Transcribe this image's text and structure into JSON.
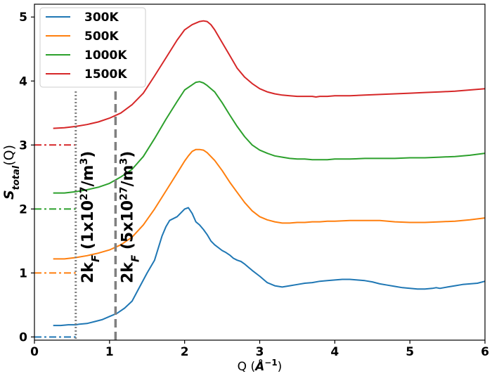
{
  "chart_data": {
    "type": "line",
    "xlabel_prefix": "Q (",
    "xlabel_unit": "Å",
    "xlabel_exp": "−1",
    "xlabel_suffix": ")",
    "ylabel_main": "S",
    "ylabel_sub": "total",
    "ylabel_arg": "(Q)",
    "xlim": [
      0,
      6
    ],
    "ylim": [
      -0.05,
      5.2
    ],
    "x_ticks": [
      "0",
      "1",
      "2",
      "3",
      "4",
      "5",
      "6"
    ],
    "y_ticks": [
      "0",
      "1",
      "2",
      "3",
      "4",
      "5"
    ],
    "grid": false,
    "legend_position": "top-left",
    "series": [
      {
        "name": "300K",
        "color": "#1f77b4",
        "baseline": 0,
        "x": [
          0.25,
          0.35,
          0.45,
          0.55,
          0.6,
          0.7,
          0.8,
          0.9,
          1.0,
          1.1,
          1.2,
          1.3,
          1.4,
          1.5,
          1.6,
          1.7,
          1.75,
          1.8,
          1.9,
          2.0,
          2.05,
          2.1,
          2.15,
          2.2,
          2.25,
          2.3,
          2.35,
          2.4,
          2.5,
          2.55,
          2.6,
          2.65,
          2.7,
          2.75,
          2.8,
          2.9,
          3.0,
          3.1,
          3.2,
          3.3,
          3.4,
          3.5,
          3.6,
          3.7,
          3.8,
          3.9,
          4.0,
          4.1,
          4.2,
          4.3,
          4.4,
          4.5,
          4.6,
          4.7,
          4.8,
          4.9,
          5.0,
          5.1,
          5.2,
          5.3,
          5.35,
          5.4,
          5.5,
          5.6,
          5.7,
          5.8,
          5.9,
          6.0
        ],
        "y": [
          0.18,
          0.18,
          0.19,
          0.19,
          0.2,
          0.21,
          0.24,
          0.27,
          0.32,
          0.37,
          0.45,
          0.56,
          0.78,
          1.0,
          1.2,
          1.58,
          1.72,
          1.82,
          1.88,
          2.0,
          2.02,
          1.93,
          1.8,
          1.75,
          1.68,
          1.6,
          1.5,
          1.44,
          1.35,
          1.32,
          1.28,
          1.23,
          1.2,
          1.18,
          1.14,
          1.04,
          0.95,
          0.85,
          0.8,
          0.78,
          0.8,
          0.82,
          0.84,
          0.85,
          0.87,
          0.88,
          0.89,
          0.9,
          0.9,
          0.89,
          0.88,
          0.86,
          0.83,
          0.81,
          0.79,
          0.77,
          0.76,
          0.75,
          0.75,
          0.76,
          0.77,
          0.76,
          0.78,
          0.8,
          0.82,
          0.83,
          0.84,
          0.87
        ]
      },
      {
        "name": "500K",
        "color": "#ff7f0e",
        "baseline": 1,
        "x": [
          0.25,
          0.4,
          0.55,
          0.7,
          0.85,
          1.0,
          1.15,
          1.3,
          1.45,
          1.6,
          1.75,
          1.9,
          2.0,
          2.05,
          2.1,
          2.15,
          2.2,
          2.25,
          2.3,
          2.4,
          2.5,
          2.6,
          2.7,
          2.8,
          2.9,
          3.0,
          3.1,
          3.2,
          3.3,
          3.4,
          3.5,
          3.6,
          3.7,
          3.8,
          3.9,
          4.0,
          4.2,
          4.4,
          4.6,
          4.8,
          5.0,
          5.2,
          5.4,
          5.6,
          5.8,
          6.0
        ],
        "y": [
          1.22,
          1.22,
          1.24,
          1.27,
          1.31,
          1.36,
          1.44,
          1.56,
          1.75,
          2.0,
          2.28,
          2.56,
          2.75,
          2.83,
          2.9,
          2.93,
          2.93,
          2.92,
          2.88,
          2.76,
          2.6,
          2.42,
          2.26,
          2.1,
          1.97,
          1.88,
          1.83,
          1.8,
          1.78,
          1.78,
          1.79,
          1.79,
          1.8,
          1.8,
          1.81,
          1.81,
          1.82,
          1.82,
          1.82,
          1.8,
          1.79,
          1.79,
          1.8,
          1.81,
          1.83,
          1.86
        ]
      },
      {
        "name": "1000K",
        "color": "#2ca02c",
        "baseline": 2,
        "x": [
          0.25,
          0.4,
          0.55,
          0.7,
          0.85,
          1.0,
          1.15,
          1.3,
          1.45,
          1.6,
          1.75,
          1.9,
          2.0,
          2.1,
          2.15,
          2.2,
          2.25,
          2.3,
          2.35,
          2.4,
          2.5,
          2.6,
          2.7,
          2.8,
          2.9,
          3.0,
          3.1,
          3.2,
          3.3,
          3.4,
          3.5,
          3.6,
          3.7,
          3.8,
          3.9,
          4.0,
          4.2,
          4.4,
          4.6,
          4.8,
          5.0,
          5.2,
          5.4,
          5.6,
          5.8,
          6.0
        ],
        "y": [
          2.25,
          2.25,
          2.27,
          2.3,
          2.34,
          2.4,
          2.5,
          2.62,
          2.82,
          3.1,
          3.4,
          3.68,
          3.86,
          3.94,
          3.98,
          3.99,
          3.97,
          3.93,
          3.88,
          3.83,
          3.66,
          3.47,
          3.29,
          3.13,
          3.0,
          2.92,
          2.87,
          2.83,
          2.81,
          2.79,
          2.78,
          2.78,
          2.77,
          2.77,
          2.77,
          2.78,
          2.78,
          2.79,
          2.79,
          2.79,
          2.8,
          2.8,
          2.81,
          2.82,
          2.84,
          2.87
        ]
      },
      {
        "name": "1500K",
        "color": "#d62728",
        "baseline": 3,
        "x": [
          0.25,
          0.4,
          0.55,
          0.7,
          0.85,
          1.0,
          1.15,
          1.3,
          1.45,
          1.6,
          1.75,
          1.9,
          2.0,
          2.1,
          2.2,
          2.25,
          2.3,
          2.35,
          2.4,
          2.5,
          2.6,
          2.7,
          2.8,
          2.9,
          3.0,
          3.1,
          3.2,
          3.3,
          3.4,
          3.5,
          3.6,
          3.7,
          3.75,
          3.8,
          3.9,
          4.0,
          4.2,
          4.4,
          4.6,
          4.8,
          5.0,
          5.2,
          5.4,
          5.6,
          5.8,
          6.0
        ],
        "y": [
          3.26,
          3.27,
          3.29,
          3.32,
          3.36,
          3.42,
          3.5,
          3.63,
          3.81,
          4.08,
          4.36,
          4.64,
          4.8,
          4.88,
          4.93,
          4.94,
          4.93,
          4.88,
          4.8,
          4.6,
          4.4,
          4.2,
          4.06,
          3.96,
          3.88,
          3.83,
          3.8,
          3.78,
          3.77,
          3.76,
          3.76,
          3.76,
          3.75,
          3.76,
          3.76,
          3.77,
          3.77,
          3.78,
          3.79,
          3.8,
          3.81,
          3.82,
          3.83,
          3.84,
          3.86,
          3.88
        ]
      }
    ],
    "markers": [
      {
        "x": 0.55,
        "style": "dotted",
        "color": "#808080",
        "label_main": "2k",
        "label_sub": "F",
        "label_paren": " (1x10",
        "label_exp": "27",
        "label_tail": "/m",
        "label_exp2": "3",
        "label_close": ")"
      },
      {
        "x": 1.08,
        "style": "dashed",
        "color": "#808080",
        "label_main": "2k",
        "label_sub": "F",
        "label_paren": " (5x10",
        "label_exp": "27",
        "label_tail": "/m",
        "label_exp2": "3",
        "label_close": ")"
      }
    ]
  }
}
